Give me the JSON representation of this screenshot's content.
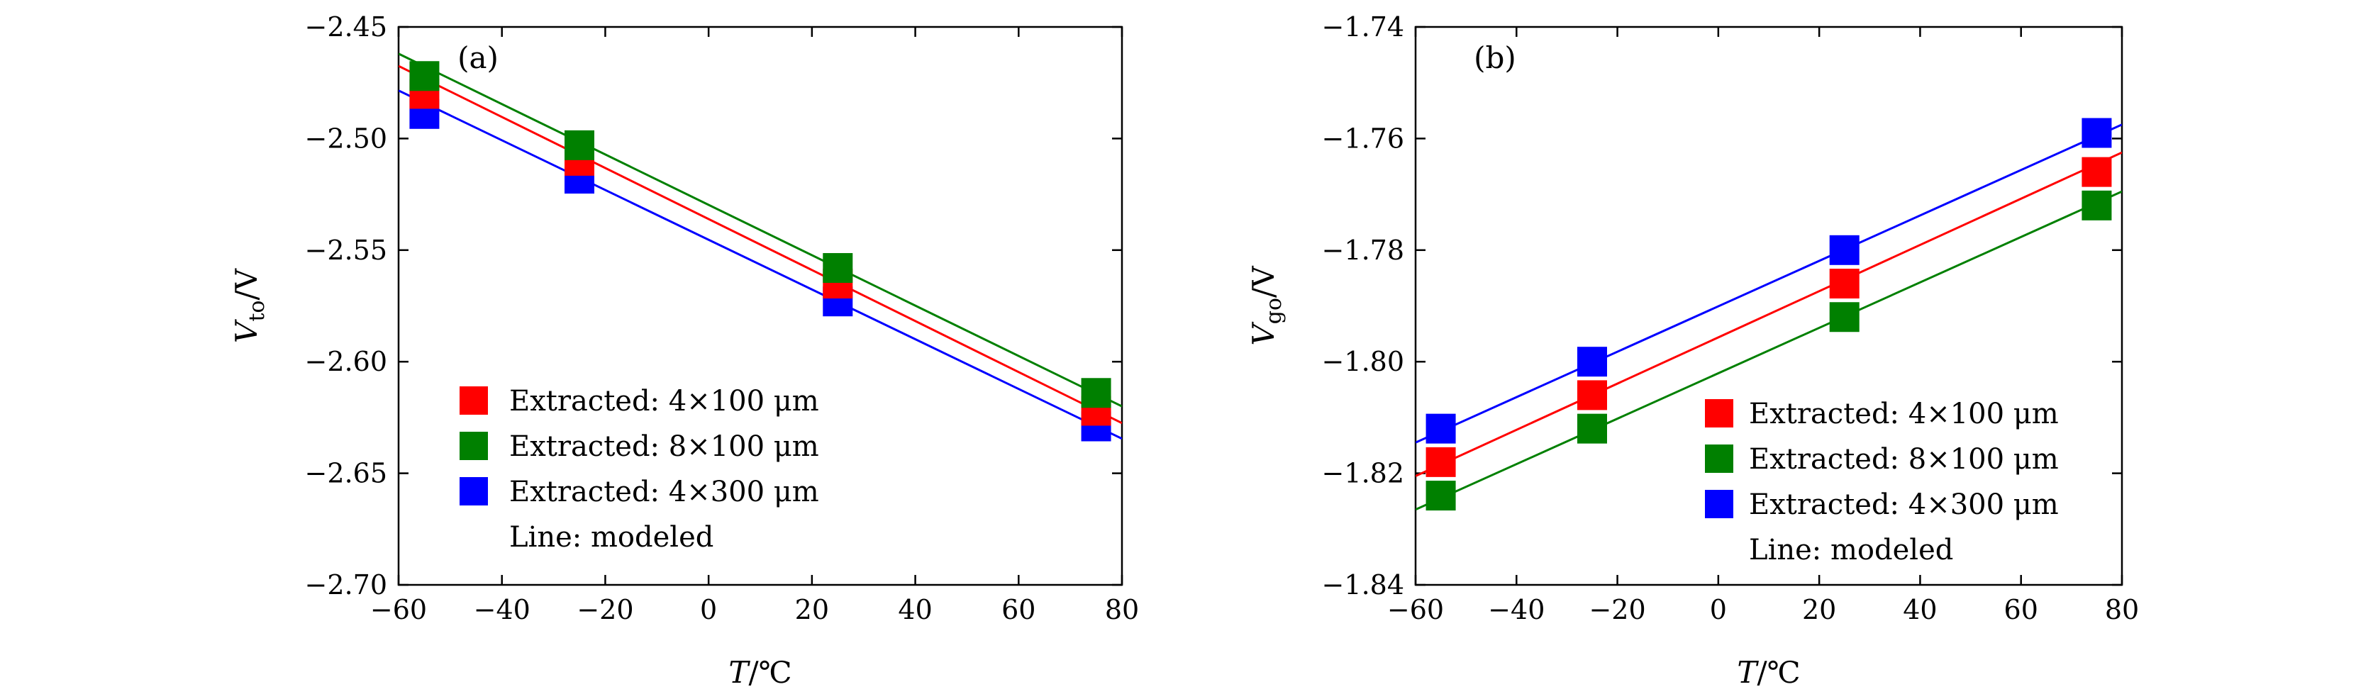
{
  "chart_data": [
    {
      "type": "scatter",
      "panel_label": "(a)",
      "xlabel": {
        "var": "T",
        "unit": "/℃"
      },
      "ylabel": {
        "var": "V",
        "sub": "to",
        "unit": "/V"
      },
      "xlim": [
        -60,
        80
      ],
      "ylim": [
        -2.7,
        -2.45
      ],
      "xticks": [
        -60,
        -40,
        -20,
        0,
        20,
        40,
        60,
        80
      ],
      "xtick_labels": [
        "−60",
        "−40",
        "−20",
        "0",
        "20",
        "40",
        "60",
        "80"
      ],
      "yticks": [
        -2.7,
        -2.65,
        -2.6,
        -2.55,
        -2.5,
        -2.45
      ],
      "ytick_labels": [
        "−2.70",
        "−2.65",
        "−2.60",
        "−2.55",
        "−2.50",
        "−2.45"
      ],
      "legend_position": "lower-left",
      "legend_note": "Line: modeled",
      "series": [
        {
          "name": "Extracted: 4×100 μm",
          "color": "#ff0000",
          "x": [
            -55,
            -25,
            25,
            75
          ],
          "y": [
            -2.48,
            -2.51,
            -2.565,
            -2.622
          ],
          "line": [
            -2.4675,
            -2.6275
          ]
        },
        {
          "name": "Extracted: 8×100 μm",
          "color": "#008000",
          "x": [
            -55,
            -25,
            25,
            75
          ],
          "y": [
            -2.472,
            -2.503,
            -2.558,
            -2.614
          ],
          "line": [
            -2.462,
            -2.62
          ]
        },
        {
          "name": "Extracted: 4×300 μm",
          "color": "#0000ff",
          "x": [
            -55,
            -25,
            25,
            75
          ],
          "y": [
            -2.489,
            -2.518,
            -2.573,
            -2.629
          ],
          "line": [
            -2.4785,
            -2.6345
          ]
        }
      ]
    },
    {
      "type": "scatter",
      "panel_label": "(b)",
      "xlabel": {
        "var": "T",
        "unit": "/℃"
      },
      "ylabel": {
        "var": "V",
        "sub": "go",
        "unit": "/V"
      },
      "xlim": [
        -60,
        80
      ],
      "ylim": [
        -1.84,
        -1.74
      ],
      "xticks": [
        -60,
        -40,
        -20,
        0,
        20,
        40,
        60,
        80
      ],
      "xtick_labels": [
        "−60",
        "−40",
        "−20",
        "0",
        "20",
        "40",
        "60",
        "80"
      ],
      "yticks": [
        -1.84,
        -1.82,
        -1.8,
        -1.78,
        -1.76,
        -1.74
      ],
      "ytick_labels": [
        "−1.84",
        "−1.82",
        "−1.80",
        "−1.78",
        "−1.76",
        "−1.74"
      ],
      "legend_position": "lower-right",
      "legend_note": "Line: modeled",
      "series": [
        {
          "name": "Extracted: 4×100 μm",
          "color": "#ff0000",
          "x": [
            -55,
            -25,
            25,
            75
          ],
          "y": [
            -1.818,
            -1.806,
            -1.786,
            -1.766
          ],
          "line": [
            -1.8205,
            -1.7625
          ]
        },
        {
          "name": "Extracted: 8×100 μm",
          "color": "#008000",
          "x": [
            -55,
            -25,
            25,
            75
          ],
          "y": [
            -1.824,
            -1.812,
            -1.792,
            -1.772
          ],
          "line": [
            -1.8265,
            -1.7695
          ]
        },
        {
          "name": "Extracted: 4×300 μm",
          "color": "#0000ff",
          "x": [
            -55,
            -25,
            25,
            75
          ],
          "y": [
            -1.812,
            -1.8,
            -1.78,
            -1.759
          ],
          "line": [
            -1.8145,
            -1.7575
          ]
        }
      ]
    }
  ]
}
